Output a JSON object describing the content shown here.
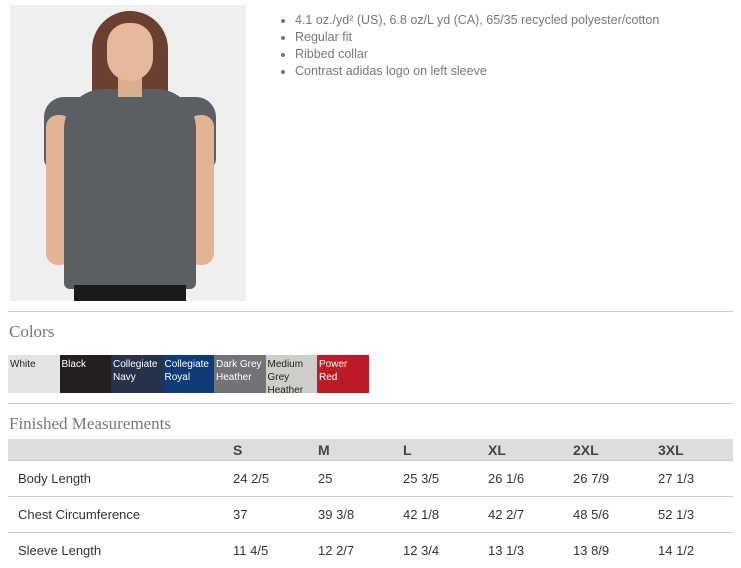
{
  "features": [
    "4.1 oz./yd² (US), 6.8 oz/L yd (CA), 65/35 recycled polyester/cotton",
    "Regular fit",
    "Ribbed collar",
    "Contrast adidas logo on left sleeve"
  ],
  "colors_heading": "Colors",
  "colors": [
    {
      "name": "White",
      "hex": "#e4e4e2",
      "text": "#222"
    },
    {
      "name": "Black",
      "hex": "#231f20",
      "text": "#fff"
    },
    {
      "name": "Collegiate Navy",
      "hex": "#26324a",
      "text": "#fff"
    },
    {
      "name": "Collegiate Royal",
      "hex": "#0e3a78",
      "text": "#fff"
    },
    {
      "name": "Dark Grey Heather",
      "hex": "#727376",
      "text": "#fff"
    },
    {
      "name": "Medium Grey Heather",
      "hex": "#cfcdca",
      "text": "#222"
    },
    {
      "name": "Power Red",
      "hex": "#bd1c26",
      "text": "#fff"
    }
  ],
  "measurements_heading": "Finished Measurements",
  "table": {
    "headers": [
      "",
      "S",
      "M",
      "L",
      "XL",
      "2XL",
      "3XL"
    ],
    "rows": [
      [
        "Body Length",
        "24 2/5",
        "25",
        "25 3/5",
        "26 1/6",
        "26 7/9",
        "27 1/3"
      ],
      [
        "Chest Circumference",
        "37",
        "39 3/8",
        "42 1/8",
        "42 2/7",
        "48 5/6",
        "52 1/3"
      ],
      [
        "Sleeve Length",
        "11 4/5",
        "12 2/7",
        "12 3/4",
        "13 1/3",
        "13 8/9",
        "14 1/2"
      ]
    ]
  }
}
